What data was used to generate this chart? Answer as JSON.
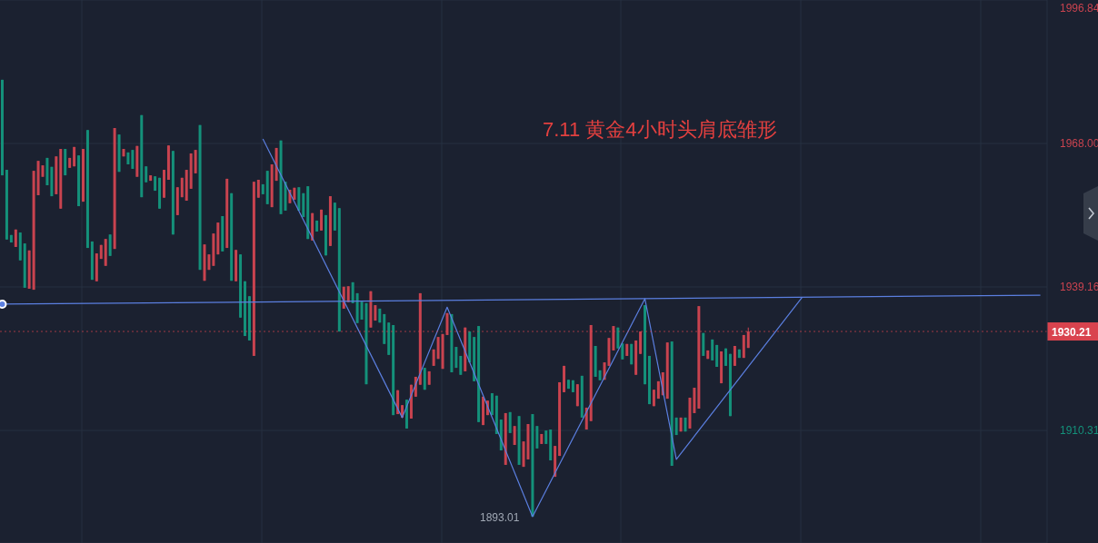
{
  "chart_data": {
    "type": "candlestick",
    "title": "7.11 黄金4小时头肩底雏形",
    "categories": [
      null,
      null,
      null,
      null,
      null,
      null,
      null,
      null,
      null,
      null,
      null,
      null,
      null,
      null,
      null,
      null,
      null,
      null,
      null,
      null,
      null,
      null,
      null,
      null,
      null,
      null,
      null,
      null,
      null,
      null,
      null,
      null,
      null,
      null,
      null,
      null,
      null,
      null,
      null,
      null,
      null,
      null,
      null,
      null,
      null,
      null,
      null,
      null,
      null,
      null,
      null,
      null,
      null,
      null,
      null,
      null,
      null,
      null,
      null,
      null,
      null,
      null,
      null,
      null,
      null,
      null,
      null,
      null,
      null,
      null,
      null,
      null,
      null,
      null,
      null,
      null,
      null,
      null,
      null,
      null,
      null,
      null,
      null,
      null,
      null,
      null,
      null,
      null,
      null,
      null,
      null,
      null,
      null,
      null,
      null,
      null,
      null,
      null,
      null,
      null,
      null,
      null,
      null,
      null,
      null,
      null,
      null,
      null,
      null,
      null,
      null,
      null,
      null,
      null,
      null,
      null,
      null,
      null,
      null,
      null,
      null,
      null,
      null,
      null,
      null,
      null,
      null,
      null,
      null,
      null,
      null,
      null,
      null,
      null,
      null,
      null,
      null,
      null,
      null,
      null,
      null,
      null,
      null,
      null,
      null,
      null,
      null,
      null,
      null,
      null,
      null,
      null,
      null,
      null,
      null,
      null,
      null,
      null,
      null,
      null,
      null,
      null,
      null,
      null,
      null,
      null,
      null,
      null,
      null,
      null,
      null,
      null,
      null,
      null,
      null,
      null,
      null,
      null,
      null,
      null,
      null,
      null,
      null,
      null,
      null,
      null,
      null,
      null,
      null,
      null,
      null,
      null,
      null,
      null,
      null,
      null,
      null,
      null,
      null,
      null,
      null,
      null,
      null,
      null,
      null,
      null,
      null,
      null,
      null,
      null,
      null,
      null,
      null,
      null,
      null,
      null,
      null,
      null,
      null,
      null,
      null,
      null,
      null,
      null,
      null,
      null,
      null,
      null,
      null,
      null,
      null,
      null,
      null
    ],
    "ohlc": [
      [
        1980.8,
        1980.8,
        1961.6,
        1961.6
      ],
      [
        1962.7,
        1962.7,
        1948.7,
        1948.7
      ],
      [
        1949.6,
        1949.6,
        1948.1,
        1948.1
      ],
      [
        1947.2,
        1950.7,
        1947.2,
        1950.7
      ],
      [
        1950.1,
        1950.1,
        1944.5,
        1944.5
      ],
      [
        1947.9,
        1947.9,
        1939.0,
        1939.0
      ],
      [
        1938.8,
        1946.5,
        1938.8,
        1946.5
      ],
      [
        1938.6,
        1962.5,
        1938.6,
        1962.5
      ],
      [
        1957.6,
        1964.5,
        1957.6,
        1964.5
      ],
      [
        1961.3,
        1963.6,
        1961.3,
        1963.6
      ],
      [
        1965.1,
        1965.1,
        1959.6,
        1959.6
      ],
      [
        1963.3,
        1963.3,
        1957.4,
        1957.4
      ],
      [
        1957.8,
        1965.4,
        1957.8,
        1965.4
      ],
      [
        1954.9,
        1966.9,
        1954.9,
        1966.9
      ],
      [
        1966.9,
        1966.9,
        1961.6,
        1961.6
      ],
      [
        1963.1,
        1965.1,
        1963.1,
        1965.1
      ],
      [
        1963.4,
        1967.3,
        1963.4,
        1967.3
      ],
      [
        1965.6,
        1965.6,
        1955.4,
        1955.4
      ],
      [
        1956.3,
        1966.9,
        1956.3,
        1966.9
      ],
      [
        1970.7,
        1970.7,
        1947.0,
        1947.0
      ],
      [
        1948.3,
        1948.3,
        1940.6,
        1940.6
      ],
      [
        1940.3,
        1945.9,
        1940.3,
        1945.9
      ],
      [
        1944.8,
        1947.6,
        1944.8,
        1947.6
      ],
      [
        1943.4,
        1948.8,
        1943.4,
        1948.8
      ],
      [
        1949.7,
        1949.7,
        1945.4,
        1945.4
      ],
      [
        1946.8,
        1971.1,
        1946.8,
        1971.1
      ],
      [
        1969.8,
        1969.8,
        1962.3,
        1962.3
      ],
      [
        1965.4,
        1966.9,
        1965.4,
        1966.9
      ],
      [
        1966.2,
        1966.2,
        1963.8,
        1963.8
      ],
      [
        1966.7,
        1966.7,
        1962.9,
        1962.9
      ],
      [
        1961.3,
        1967.5,
        1961.3,
        1967.5
      ],
      [
        1973.7,
        1973.7,
        1957.2,
        1957.2
      ],
      [
        1963.4,
        1963.4,
        1960.2,
        1960.2
      ],
      [
        1960.5,
        1961.6,
        1960.5,
        1961.6
      ],
      [
        1961.4,
        1961.4,
        1958.5,
        1958.5
      ],
      [
        1961.1,
        1961.1,
        1954.9,
        1954.9
      ],
      [
        1957.1,
        1962.7,
        1957.1,
        1962.7
      ],
      [
        1960.7,
        1967.6,
        1960.7,
        1967.6
      ],
      [
        1966.5,
        1966.5,
        1949.7,
        1949.7
      ],
      [
        1953.6,
        1959.2,
        1953.6,
        1959.2
      ],
      [
        1957.2,
        1961.1,
        1957.2,
        1961.1
      ],
      [
        1956.5,
        1962.7,
        1956.5,
        1962.7
      ],
      [
        1958.9,
        1966.0,
        1958.9,
        1966.0
      ],
      [
        1962.0,
        1966.7,
        1962.0,
        1966.7
      ],
      [
        1971.7,
        1971.7,
        1942.6,
        1942.6
      ],
      [
        1940.4,
        1947.7,
        1940.4,
        1947.7
      ],
      [
        1942.6,
        1945.7,
        1942.6,
        1945.7
      ],
      [
        1943.4,
        1949.9,
        1943.4,
        1949.9
      ],
      [
        1945.7,
        1952.1,
        1945.7,
        1952.1
      ],
      [
        1953.4,
        1953.4,
        1946.3,
        1946.3
      ],
      [
        1947.0,
        1960.9,
        1947.0,
        1960.9
      ],
      [
        1958.0,
        1958.0,
        1940.4,
        1940.4
      ],
      [
        1940.3,
        1946.6,
        1940.3,
        1946.6
      ],
      [
        1945.7,
        1945.7,
        1933.0,
        1933.0
      ],
      [
        1940.3,
        1940.3,
        1929.3,
        1929.3
      ],
      [
        1937.3,
        1937.3,
        1928.4,
        1928.4
      ],
      [
        1925.3,
        1960.3,
        1925.3,
        1960.3
      ],
      [
        1957.1,
        1960.7,
        1957.1,
        1960.7
      ],
      [
        1959.8,
        1959.8,
        1957.8,
        1957.8
      ],
      [
        1962.5,
        1962.5,
        1955.8,
        1955.8
      ],
      [
        1955.2,
        1963.8,
        1955.2,
        1963.8
      ],
      [
        1960.5,
        1967.1,
        1960.5,
        1967.1
      ],
      [
        1968.6,
        1968.6,
        1953.8,
        1953.8
      ],
      [
        1960.3,
        1960.3,
        1954.5,
        1954.5
      ],
      [
        1956.0,
        1958.7,
        1956.0,
        1958.7
      ],
      [
        1956.7,
        1959.1,
        1956.7,
        1959.1
      ],
      [
        1959.2,
        1959.2,
        1954.5,
        1954.5
      ],
      [
        1958.0,
        1958.0,
        1953.2,
        1953.2
      ],
      [
        1959.4,
        1959.4,
        1948.8,
        1948.8
      ],
      [
        1948.5,
        1954.0,
        1948.5,
        1954.0
      ],
      [
        1952.5,
        1952.5,
        1950.3,
        1950.3
      ],
      [
        1950.5,
        1954.7,
        1950.5,
        1954.7
      ],
      [
        1953.6,
        1953.6,
        1945.5,
        1945.5
      ],
      [
        1947.4,
        1957.4,
        1947.4,
        1957.4
      ],
      [
        1956.1,
        1956.1,
        1950.5,
        1950.5
      ],
      [
        1955.0,
        1955.0,
        1930.2,
        1930.2
      ],
      [
        1934.8,
        1939.2,
        1934.8,
        1939.2
      ],
      [
        1936.1,
        1939.3,
        1936.1,
        1939.3
      ],
      [
        1940.1,
        1940.1,
        1935.9,
        1935.9
      ],
      [
        1937.9,
        1937.9,
        1931.9,
        1931.9
      ],
      [
        1936.2,
        1936.2,
        1932.6,
        1932.6
      ],
      [
        1935.9,
        1935.9,
        1919.6,
        1919.6
      ],
      [
        1931.0,
        1938.3,
        1931.0,
        1938.3
      ],
      [
        1932.4,
        1935.5,
        1932.4,
        1935.5
      ],
      [
        1934.8,
        1934.8,
        1932.0,
        1932.0
      ],
      [
        1933.7,
        1933.7,
        1927.7,
        1927.7
      ],
      [
        1932.0,
        1932.0,
        1925.5,
        1925.5
      ],
      [
        1931.5,
        1931.5,
        1913.4,
        1913.4
      ],
      [
        1913.6,
        1918.4,
        1913.6,
        1918.4
      ],
      [
        1912.9,
        1915.4,
        1912.9,
        1915.4
      ],
      [
        1916.5,
        1916.5,
        1910.7,
        1910.7
      ],
      [
        1912.7,
        1919.5,
        1912.7,
        1919.5
      ],
      [
        1917.1,
        1921.1,
        1917.1,
        1921.1
      ],
      [
        1919.5,
        1937.9,
        1919.5,
        1937.9
      ],
      [
        1922.9,
        1922.9,
        1918.5,
        1918.5
      ],
      [
        1919.5,
        1922.2,
        1919.5,
        1922.2
      ],
      [
        1923.3,
        1926.6,
        1923.3,
        1926.6
      ],
      [
        1924.7,
        1929.1,
        1924.7,
        1929.1
      ],
      [
        1922.7,
        1929.7,
        1922.7,
        1929.7
      ],
      [
        1929.5,
        1933.9,
        1929.5,
        1933.9
      ],
      [
        1933.7,
        1933.7,
        1922.0,
        1922.0
      ],
      [
        1927.1,
        1927.1,
        1922.9,
        1922.9
      ],
      [
        1925.3,
        1925.3,
        1921.5,
        1921.5
      ],
      [
        1922.2,
        1931.0,
        1922.2,
        1931.0
      ],
      [
        1930.2,
        1930.2,
        1924.0,
        1924.0
      ],
      [
        1929.1,
        1929.1,
        1920.2,
        1920.2
      ],
      [
        1931.3,
        1931.3,
        1912.0,
        1912.0
      ],
      [
        1911.4,
        1917.1,
        1911.4,
        1917.1
      ],
      [
        1913.4,
        1916.3,
        1913.4,
        1916.3
      ],
      [
        1917.8,
        1917.8,
        1913.4,
        1913.4
      ],
      [
        1917.3,
        1917.3,
        1909.6,
        1909.6
      ],
      [
        1912.5,
        1912.5,
        1906.3,
        1906.3
      ],
      [
        1903.4,
        1913.8,
        1903.4,
        1913.8
      ],
      [
        1914.0,
        1914.0,
        1909.8,
        1909.8
      ],
      [
        1907.4,
        1911.2,
        1907.4,
        1911.2
      ],
      [
        1913.2,
        1913.2,
        1903.4,
        1903.4
      ],
      [
        1903.0,
        1908.1,
        1903.0,
        1908.1
      ],
      [
        1904.5,
        1911.6,
        1904.5,
        1911.6
      ],
      [
        1913.6,
        1913.6,
        1893.01,
        1893.01
      ],
      [
        1911.2,
        1911.2,
        1906.7,
        1906.7
      ],
      [
        1907.6,
        1909.6,
        1907.6,
        1909.6
      ],
      [
        1910.3,
        1910.3,
        1907.6,
        1907.6
      ],
      [
        1910.5,
        1910.5,
        1904.3,
        1904.3
      ],
      [
        1901.0,
        1907.2,
        1901.0,
        1907.2
      ],
      [
        1905.2,
        1920.0,
        1905.2,
        1920.0
      ],
      [
        1918.0,
        1923.3,
        1918.0,
        1923.3
      ],
      [
        1920.5,
        1920.5,
        1918.7,
        1918.7
      ],
      [
        1920.4,
        1920.4,
        1918.0,
        1918.0
      ],
      [
        1915.2,
        1919.6,
        1915.2,
        1919.6
      ],
      [
        1921.3,
        1921.3,
        1912.9,
        1912.9
      ],
      [
        1910.5,
        1914.9,
        1910.5,
        1914.9
      ],
      [
        1912.2,
        1931.5,
        1912.2,
        1931.5
      ],
      [
        1927.3,
        1927.3,
        1921.1,
        1921.1
      ],
      [
        1922.4,
        1922.4,
        1920.4,
        1920.4
      ],
      [
        1920.5,
        1924.0,
        1920.5,
        1924.0
      ],
      [
        1923.3,
        1928.9,
        1923.3,
        1928.9
      ],
      [
        1926.4,
        1931.3,
        1926.4,
        1931.3
      ],
      [
        1931.0,
        1931.0,
        1926.8,
        1926.8
      ],
      [
        1927.8,
        1927.8,
        1924.6,
        1924.6
      ],
      [
        1925.3,
        1927.7,
        1925.3,
        1927.7
      ],
      [
        1927.7,
        1927.7,
        1923.6,
        1923.6
      ],
      [
        1921.5,
        1928.4,
        1921.5,
        1928.4
      ],
      [
        1925.7,
        1930.2,
        1925.7,
        1930.2
      ],
      [
        1935.5,
        1935.5,
        1919.6,
        1919.6
      ],
      [
        1925.3,
        1925.3,
        1915.6,
        1915.6
      ],
      [
        1915.2,
        1918.5,
        1915.2,
        1918.5
      ],
      [
        1916.7,
        1920.2,
        1916.7,
        1920.2
      ],
      [
        1917.4,
        1922.0,
        1917.4,
        1922.0
      ],
      [
        1916.7,
        1928.0,
        1916.7,
        1928.0
      ],
      [
        1928.2,
        1928.2,
        1903.2,
        1903.2
      ],
      [
        1912.9,
        1912.9,
        1909.4,
        1909.4
      ],
      [
        1910.1,
        1912.9,
        1910.1,
        1912.9
      ],
      [
        1912.9,
        1912.9,
        1910.1,
        1910.1
      ],
      [
        1910.7,
        1916.9,
        1910.7,
        1916.9
      ],
      [
        1913.8,
        1918.9,
        1913.8,
        1918.9
      ],
      [
        1914.7,
        1935.3,
        1914.7,
        1935.3
      ],
      [
        1929.9,
        1929.9,
        1925.3,
        1925.3
      ],
      [
        1924.7,
        1926.4,
        1924.7,
        1926.4
      ],
      [
        1928.6,
        1928.6,
        1924.4,
        1924.4
      ],
      [
        1927.5,
        1927.5,
        1923.1,
        1923.1
      ],
      [
        1919.8,
        1926.2,
        1919.8,
        1926.2
      ],
      [
        1926.8,
        1926.8,
        1923.3,
        1923.3
      ],
      [
        1925.7,
        1925.7,
        1913.2,
        1913.2
      ],
      [
        1923.3,
        1927.3,
        1923.3,
        1927.3
      ],
      [
        1926.6,
        1926.6,
        1924.9,
        1924.9
      ],
      [
        1924.9,
        1929.5,
        1924.9,
        1929.5
      ],
      [
        1926.9,
        1931.0,
        1926.9,
        1930.21
      ],
      null,
      null,
      null,
      null,
      null,
      null,
      null,
      null,
      null,
      null,
      null,
      null,
      null,
      null,
      null,
      null,
      null,
      null,
      null,
      null,
      null,
      null,
      null,
      null,
      null,
      null,
      null,
      null,
      null,
      null,
      null,
      null,
      null,
      null,
      null,
      null,
      null,
      null,
      null,
      null,
      null,
      null,
      null,
      null,
      null,
      null,
      null,
      null,
      null,
      null,
      null,
      null,
      null,
      null,
      null,
      null,
      null,
      null,
      null,
      null,
      null,
      null,
      null,
      null,
      null,
      null
    ],
    "series": [
      {
        "type": "line",
        "color": "#5b7fe0",
        "values": [
          1935.7,
          null,
          null,
          null,
          null,
          null,
          null,
          null,
          null,
          null,
          null,
          null,
          null,
          null,
          null,
          null,
          null,
          null,
          null,
          null,
          null,
          null,
          null,
          null,
          null,
          null,
          null,
          null,
          null,
          null,
          null,
          null,
          null,
          null,
          null,
          null,
          null,
          null,
          null,
          null,
          null,
          null,
          null,
          null,
          null,
          null,
          null,
          null,
          null,
          null,
          null,
          null,
          null,
          null,
          null,
          null,
          null,
          null,
          null,
          null,
          null,
          null,
          null,
          null,
          null,
          null,
          null,
          null,
          null,
          null,
          null,
          null,
          null,
          null,
          null,
          null,
          null,
          null,
          null,
          null,
          null,
          null,
          null,
          null,
          null,
          null,
          null,
          null,
          null,
          null,
          null,
          null,
          null,
          null,
          null,
          null,
          null,
          null,
          null,
          null,
          null,
          null,
          null,
          null,
          null,
          null,
          null,
          null,
          null,
          null,
          null,
          null,
          null,
          null,
          null,
          null,
          null,
          null,
          null,
          null,
          null,
          null,
          null,
          null,
          null,
          null,
          null,
          null,
          null,
          null,
          null,
          null,
          null,
          null,
          null,
          null,
          null,
          null,
          null,
          null,
          null,
          null,
          null,
          null,
          null,
          null,
          null,
          null,
          null,
          null,
          null,
          null,
          null,
          null,
          null,
          null,
          null,
          null,
          null,
          null,
          null,
          null,
          null,
          null,
          null,
          null,
          null,
          null,
          null,
          null,
          null,
          null,
          null,
          null,
          null,
          null,
          null,
          null,
          null,
          null,
          null,
          null,
          null,
          null,
          null,
          null,
          null,
          null,
          null,
          null,
          null,
          null,
          null,
          null,
          null,
          null,
          null,
          null,
          null,
          null,
          null,
          null,
          null,
          null,
          null,
          null,
          null,
          null,
          null,
          null,
          null,
          null,
          null,
          null,
          null,
          null,
          null,
          null,
          null,
          null,
          null,
          null,
          null,
          null,
          null,
          null,
          null,
          null,
          null,
          null,
          null,
          1937.5,
          null
        ]
      },
      {
        "type": "line",
        "color": "#5b7fe0",
        "values": [
          null,
          null,
          null,
          null,
          null,
          null,
          null,
          null,
          null,
          null,
          null,
          null,
          null,
          null,
          null,
          null,
          null,
          null,
          null,
          null,
          null,
          null,
          null,
          null,
          null,
          null,
          null,
          null,
          null,
          null,
          null,
          null,
          null,
          null,
          null,
          null,
          null,
          null,
          null,
          null,
          null,
          null,
          null,
          null,
          null,
          null,
          null,
          null,
          null,
          null,
          null,
          null,
          null,
          null,
          null,
          null,
          null,
          null,
          1968.9,
          null,
          null,
          null,
          null,
          null,
          null,
          null,
          null,
          null,
          null,
          null,
          null,
          null,
          null,
          null,
          null,
          null,
          null,
          null,
          null,
          null,
          null,
          null,
          null,
          null,
          null,
          null,
          null,
          null,
          null,
          1912.9,
          null,
          null,
          null,
          null,
          null,
          null,
          null,
          null,
          null,
          1935.1,
          null,
          null,
          null,
          null,
          null,
          null,
          null,
          null,
          null,
          null,
          null,
          null,
          null,
          null,
          null,
          null,
          null,
          null,
          1893.0,
          null,
          null,
          null,
          null,
          null,
          null,
          null,
          null,
          null,
          null,
          null,
          null,
          null,
          null,
          null,
          null,
          null,
          null,
          null,
          null,
          null,
          null,
          null,
          null,
          1936.8,
          null,
          null,
          null,
          null,
          null,
          null,
          1904.5,
          null,
          null,
          null,
          null,
          null,
          null,
          null,
          null,
          null,
          null,
          null,
          null,
          null,
          null,
          null,
          null,
          null,
          null,
          null,
          null,
          null,
          null,
          null,
          null,
          null,
          null,
          null,
          1937.1,
          null,
          null,
          null,
          null,
          null,
          null,
          null,
          null,
          null,
          null,
          null,
          null,
          null,
          null,
          null,
          null,
          null,
          null,
          null,
          null,
          null,
          null,
          null,
          null,
          null,
          null,
          null,
          null,
          null,
          null,
          null,
          null,
          null,
          null,
          null,
          null,
          null,
          null,
          null,
          null,
          null,
          null,
          null,
          null,
          null,
          null,
          null,
          null,
          null,
          null,
          null,
          null,
          null,
          null
        ]
      }
    ],
    "ylim": [
      1887.69,
      1996.84
    ],
    "yticks": [
      1910.31,
      1939.16,
      {
        "value": 1968,
        "label": "1968.00"
      },
      1996.84
    ],
    "grid": true,
    "tick_labels": "y",
    "ref_lines": [
      {
        "axis": "y",
        "value": 1930.21,
        "label": "1930.21",
        "color": "#d9434e",
        "line_style": "dotted"
      }
    ],
    "annotations": [
      "1893.01"
    ]
  }
}
